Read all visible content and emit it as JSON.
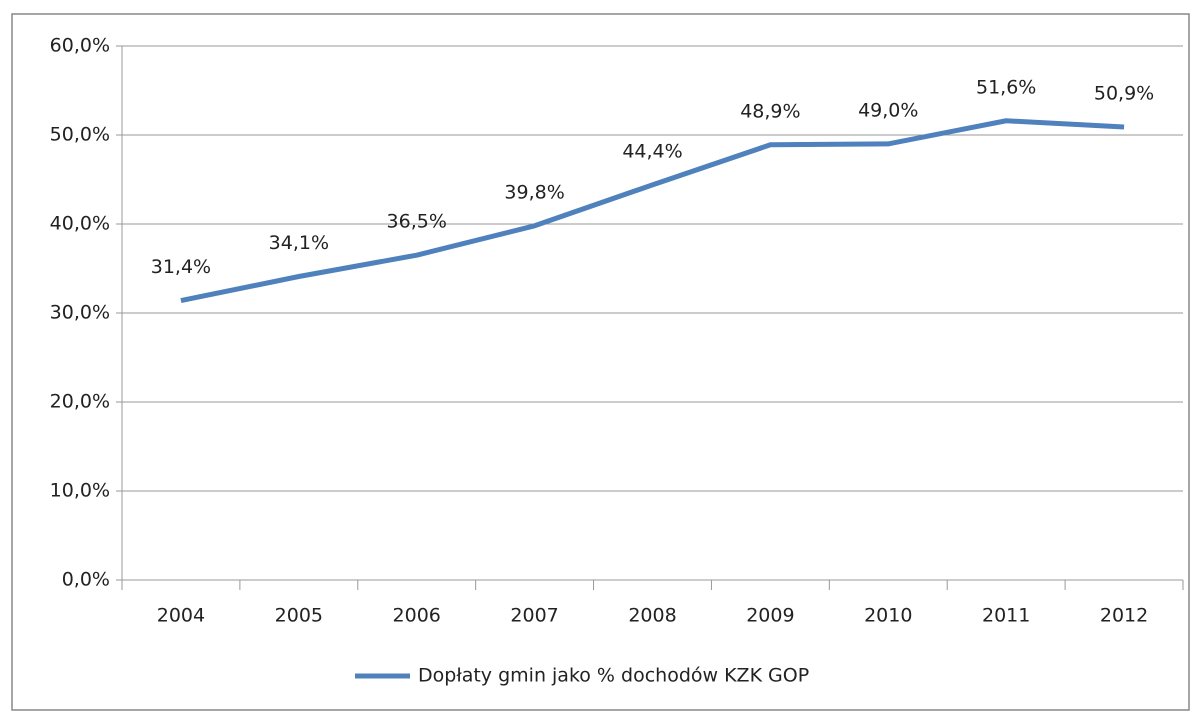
{
  "chart_data": {
    "type": "line",
    "categories": [
      "2004",
      "2005",
      "2006",
      "2007",
      "2008",
      "2009",
      "2010",
      "2011",
      "2012"
    ],
    "series": [
      {
        "name": "Dopłaty gmin jako % dochodów KZK GOP",
        "color": "#4f81bd",
        "values": [
          31.4,
          34.1,
          36.5,
          39.8,
          44.4,
          48.9,
          49.0,
          51.6,
          50.9
        ],
        "value_labels": [
          "31,4%",
          "34,1%",
          "36,5%",
          "39,8%",
          "44,4%",
          "48,9%",
          "49,0%",
          "51,6%",
          "50,9%"
        ]
      }
    ],
    "ylim": [
      0,
      60
    ],
    "yticks": [
      {
        "value": 0,
        "label": "0,0%"
      },
      {
        "value": 10,
        "label": "10,0%"
      },
      {
        "value": 20,
        "label": "20,0%"
      },
      {
        "value": 30,
        "label": "30,0%"
      },
      {
        "value": 40,
        "label": "40,0%"
      },
      {
        "value": 50,
        "label": "50,0%"
      },
      {
        "value": 60,
        "label": "60,0%"
      }
    ],
    "grid": true,
    "legend": "bottom"
  }
}
